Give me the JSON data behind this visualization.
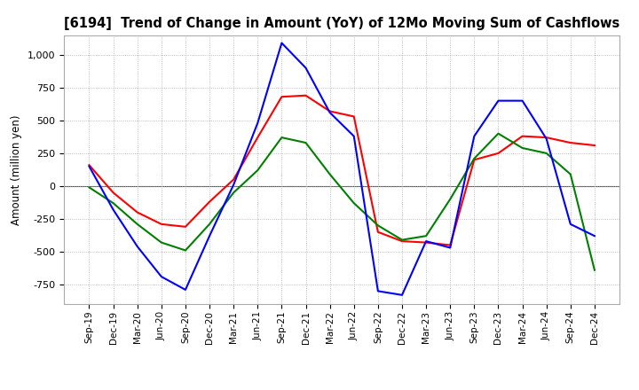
{
  "title": "[6194]  Trend of Change in Amount (YoY) of 12Mo Moving Sum of Cashflows",
  "ylabel": "Amount (million yen)",
  "x_labels": [
    "Sep-19",
    "Dec-19",
    "Mar-20",
    "Jun-20",
    "Sep-20",
    "Dec-20",
    "Mar-21",
    "Jun-21",
    "Sep-21",
    "Dec-21",
    "Mar-22",
    "Jun-22",
    "Sep-22",
    "Dec-22",
    "Mar-23",
    "Jun-23",
    "Sep-23",
    "Dec-23",
    "Mar-24",
    "Jun-24",
    "Sep-24",
    "Dec-24"
  ],
  "operating": [
    160,
    -50,
    -200,
    -290,
    -310,
    -120,
    50,
    370,
    680,
    690,
    570,
    530,
    -350,
    -420,
    -430,
    -450,
    200,
    250,
    380,
    370,
    330,
    310
  ],
  "investing": [
    -10,
    -130,
    -290,
    -430,
    -490,
    -290,
    -50,
    120,
    370,
    330,
    90,
    -130,
    -300,
    -410,
    -380,
    -100,
    210,
    400,
    290,
    250,
    90,
    -640
  ],
  "free": [
    150,
    -180,
    -460,
    -690,
    -790,
    -380,
    10,
    480,
    1090,
    900,
    560,
    380,
    -800,
    -830,
    -420,
    -470,
    380,
    650,
    650,
    360,
    -290,
    -380
  ],
  "operating_color": "#ff0000",
  "investing_color": "#008000",
  "free_color": "#0000ff",
  "ylim": [
    -900,
    1150
  ],
  "yticks": [
    -750,
    -500,
    -250,
    0,
    250,
    500,
    750,
    1000
  ],
  "background_color": "#ffffff",
  "grid_color": "#aaaaaa"
}
